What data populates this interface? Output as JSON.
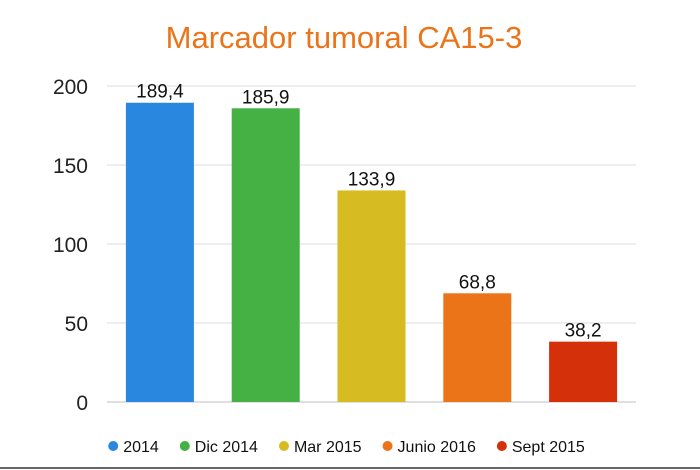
{
  "chart_data": {
    "type": "bar",
    "title": "Marcador tumoral CA15-3",
    "categories": [
      "2014",
      "Dic 2014",
      "Mar 2015",
      "Junio 2016",
      "Sept 2015"
    ],
    "values": [
      189.4,
      185.9,
      133.9,
      68.8,
      38.2
    ],
    "value_labels": [
      "189,4",
      "185,9",
      "133,9",
      "68,8",
      "38,2"
    ],
    "colors": [
      "#2a87e0",
      "#45b043",
      "#d6bb22",
      "#ec7418",
      "#d4300a"
    ],
    "title_color": "#ec7418",
    "ylim": [
      0,
      200
    ],
    "yticks": [
      0,
      50,
      100,
      150,
      200
    ],
    "ytick_labels": [
      "0",
      "50",
      "100",
      "150",
      "200"
    ],
    "xlabel": "",
    "ylabel": "",
    "grid": true,
    "legend_position": "bottom"
  }
}
